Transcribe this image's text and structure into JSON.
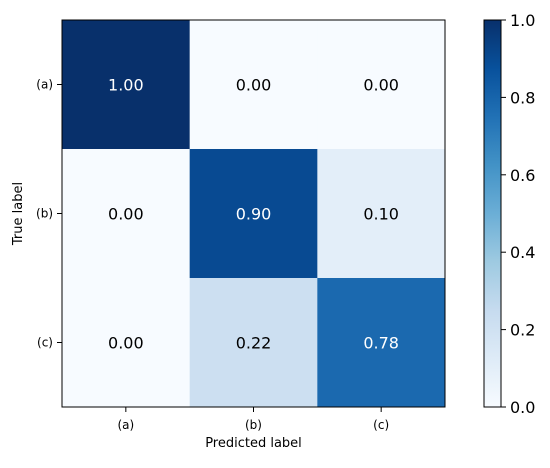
{
  "chart_data": {
    "type": "heatmap",
    "title": "",
    "xlabel": "Predicted label",
    "ylabel": "True label",
    "x_categories": [
      "(a)",
      "(b)",
      "(c)"
    ],
    "y_categories": [
      "(a)",
      "(b)",
      "(c)"
    ],
    "values": [
      [
        1.0,
        0.0,
        0.0
      ],
      [
        0.0,
        0.9,
        0.1
      ],
      [
        0.0,
        0.22,
        0.78
      ]
    ],
    "value_labels": [
      [
        "1.00",
        "0.00",
        "0.00"
      ],
      [
        "0.00",
        "0.90",
        "0.10"
      ],
      [
        "0.00",
        "0.22",
        "0.78"
      ]
    ],
    "colormap": "Blues",
    "colorbar": {
      "range": [
        0.0,
        1.0
      ],
      "ticks": [
        "0.0",
        "0.2",
        "0.4",
        "0.6",
        "0.8",
        "1.0"
      ]
    },
    "grid": false
  }
}
